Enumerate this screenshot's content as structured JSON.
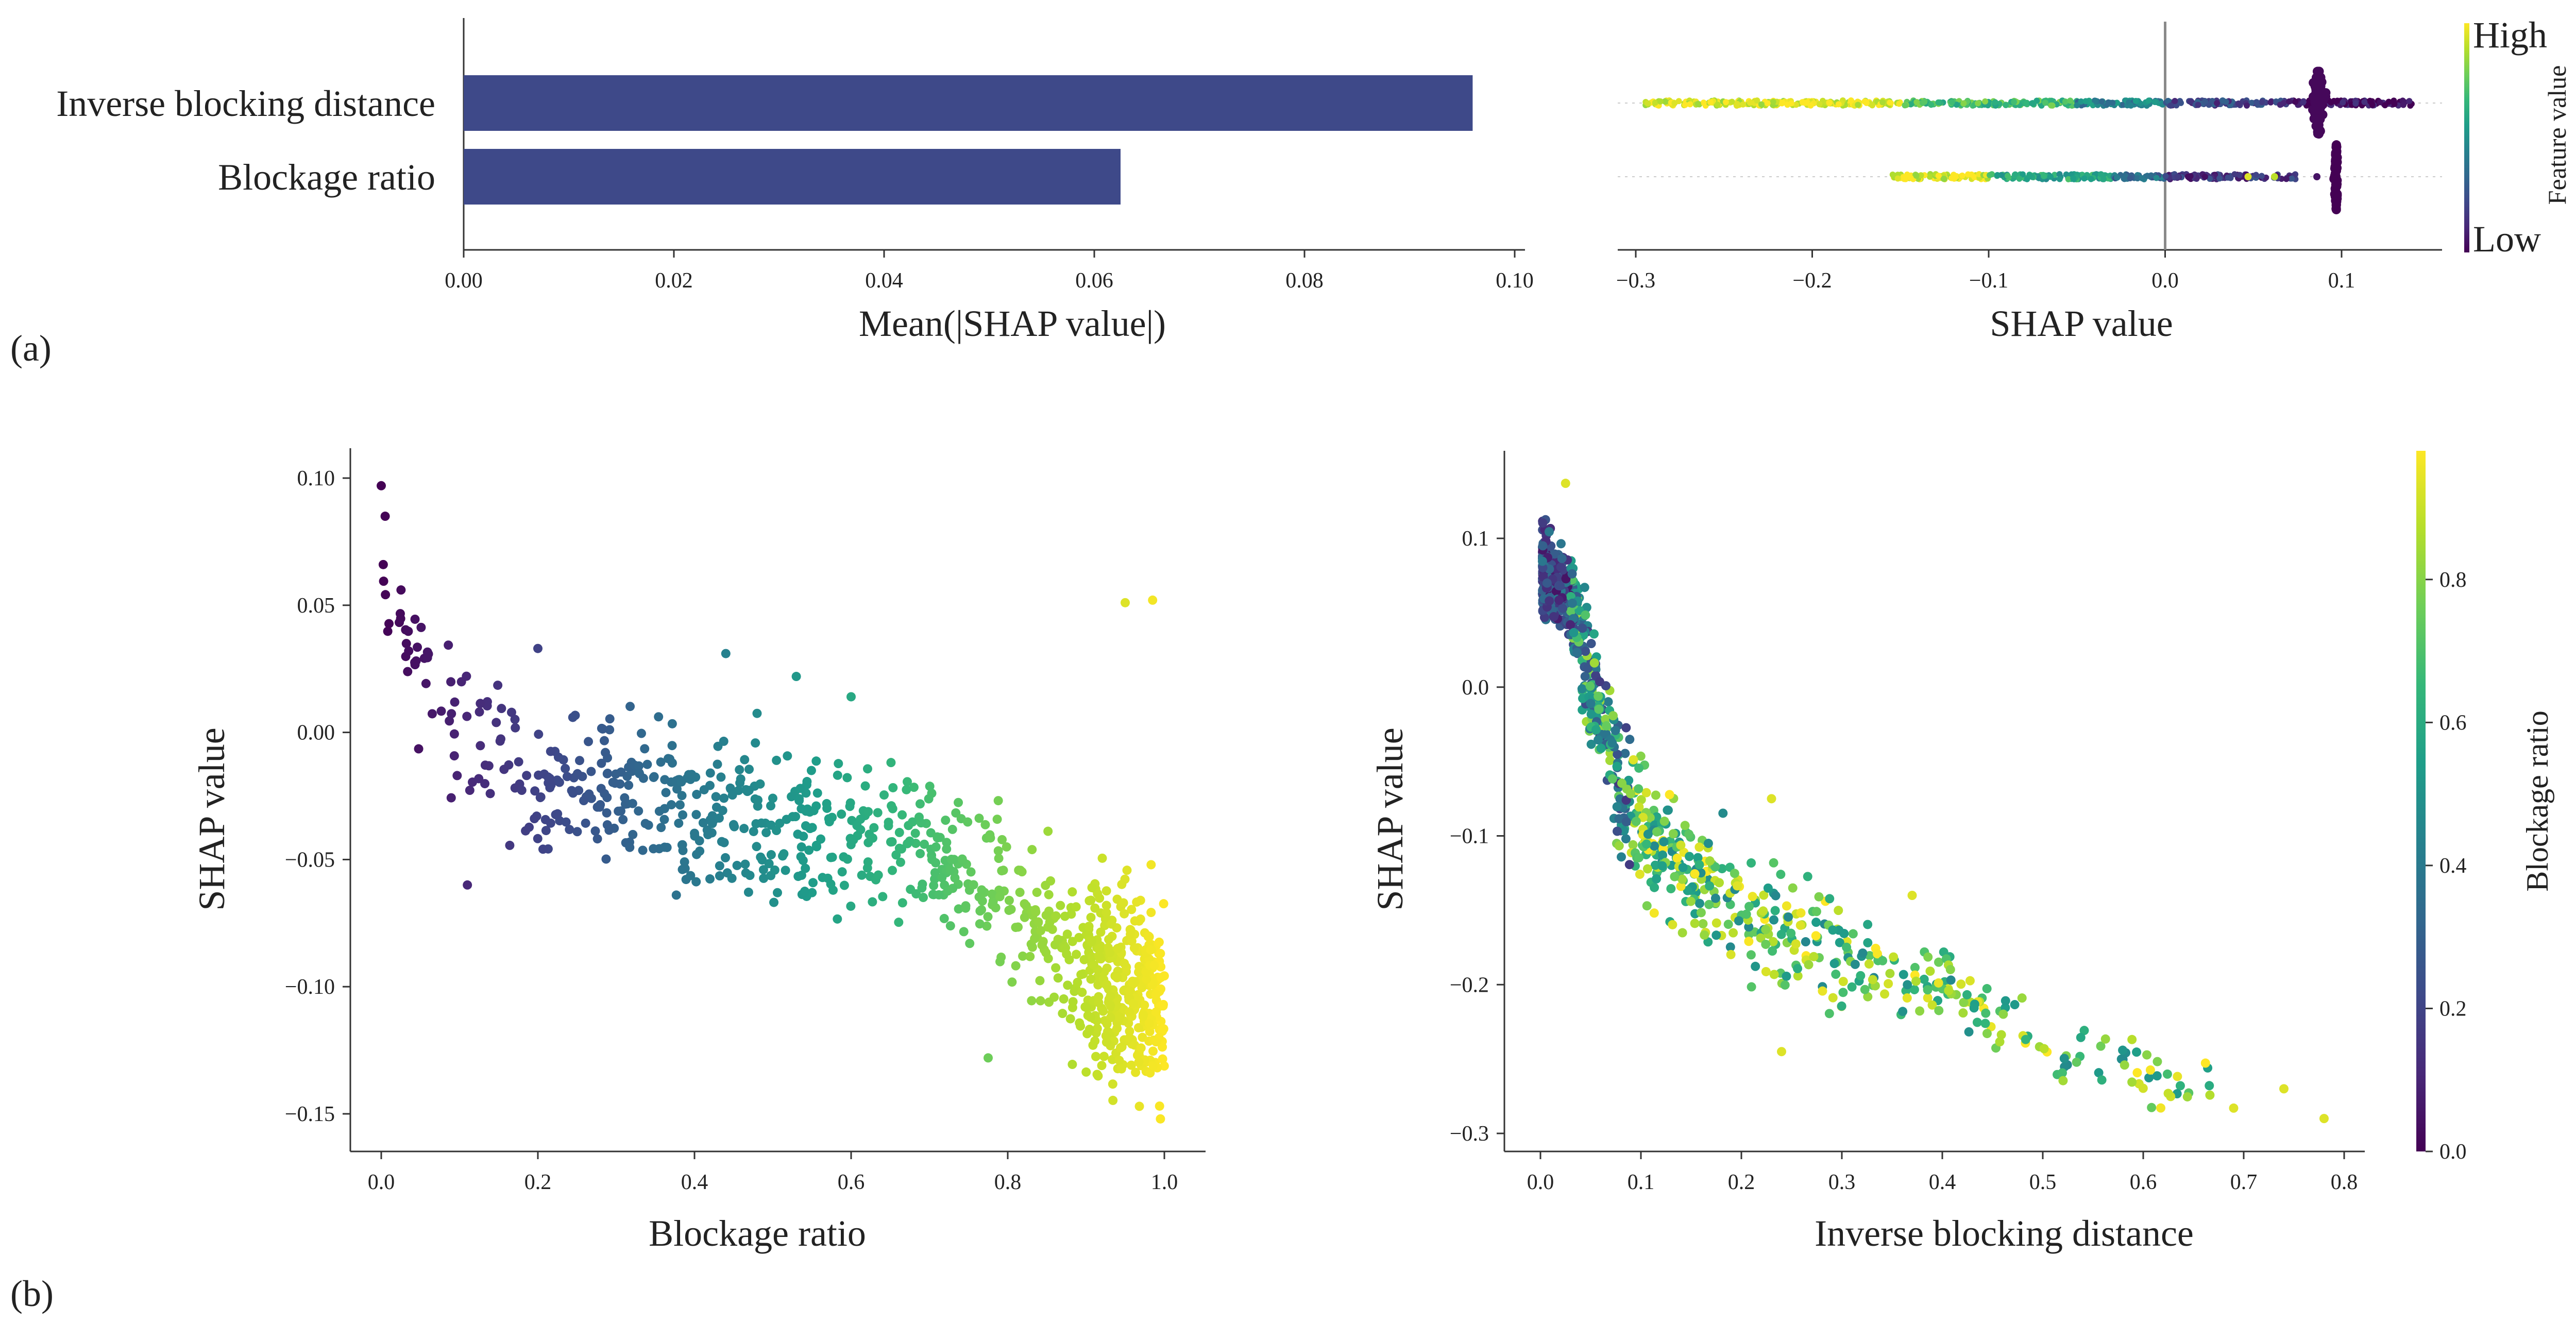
{
  "figure": {
    "panel_labels": [
      "(a)",
      "(b)"
    ]
  },
  "colors": {
    "bar": "#3e4989",
    "viridis_stops": [
      "#440154",
      "#482878",
      "#3e4989",
      "#31688e",
      "#26828e",
      "#1f9e89",
      "#35b779",
      "#6ece58",
      "#b5de2b",
      "#fde725"
    ]
  },
  "chart_data": [
    {
      "id": "importance",
      "type": "bar",
      "orientation": "horizontal",
      "categories": [
        "Inverse blocking distance",
        "Blockage ratio"
      ],
      "values": [
        0.096,
        0.0625
      ],
      "xlabel": "Mean(|SHAP value|)",
      "xlim": [
        0,
        0.1
      ],
      "xticks": [
        0.0,
        0.02,
        0.04,
        0.06,
        0.08,
        0.1
      ],
      "xtick_labels": [
        "0.00",
        "0.02",
        "0.04",
        "0.06",
        "0.08",
        "0.10"
      ]
    },
    {
      "id": "beeswarm",
      "type": "scatter",
      "subtype": "beeswarm",
      "features": [
        "Inverse blocking distance",
        "Blockage ratio"
      ],
      "xlabel": "SHAP value",
      "xlim": [
        -0.31,
        0.155
      ],
      "xticks": [
        -0.3,
        -0.2,
        -0.1,
        0.0,
        0.1
      ],
      "xtick_labels": [
        "−0.3",
        "−0.2",
        "−0.1",
        "0.0",
        "0.1"
      ],
      "colorbar": {
        "label": "Feature value",
        "high": "High",
        "low": "Low"
      },
      "rows": [
        {
          "feature": "Inverse blocking distance",
          "segments": [
            {
              "from": -0.295,
              "to": -0.15,
              "feature_value": 0.95
            },
            {
              "from": -0.15,
              "to": -0.05,
              "feature_value": 0.7
            },
            {
              "from": -0.05,
              "to": 0.0,
              "feature_value": 0.45
            },
            {
              "from": 0.0,
              "to": 0.07,
              "feature_value": 0.2
            },
            {
              "from": 0.07,
              "to": 0.14,
              "feature_value": 0.03
            }
          ],
          "cluster": {
            "at": 0.087,
            "spread": 0.0045,
            "feature_value": 0.02
          }
        },
        {
          "feature": "Blockage ratio",
          "segments": [
            {
              "from": -0.155,
              "to": -0.1,
              "feature_value": 0.95
            },
            {
              "from": -0.1,
              "to": -0.03,
              "feature_value": 0.6
            },
            {
              "from": -0.03,
              "to": 0.0,
              "feature_value": 0.35
            },
            {
              "from": 0.0,
              "to": 0.075,
              "feature_value": 0.15
            }
          ],
          "extra_points": [
            {
              "x": 0.047,
              "feature_value": 0.95
            },
            {
              "x": 0.062,
              "feature_value": 0.9
            },
            {
              "x": 0.086,
              "feature_value": 0.05
            }
          ],
          "cluster": {
            "at": 0.097,
            "spread": 0.001,
            "feature_value": 0.0
          }
        }
      ]
    },
    {
      "id": "dependence_blockage",
      "type": "scatter",
      "subtype": "dependence",
      "xlabel": "Blockage ratio",
      "ylabel": "SHAP value",
      "xlim": [
        -0.05,
        1.05
      ],
      "ylim": [
        -0.165,
        0.108
      ],
      "xticks": [
        0.0,
        0.2,
        0.4,
        0.6,
        0.8,
        1.0
      ],
      "xtick_labels": [
        "0.0",
        "0.2",
        "0.4",
        "0.6",
        "0.8",
        "1.0"
      ],
      "yticks": [
        0.1,
        0.05,
        0.0,
        -0.05,
        -0.1,
        -0.15
      ],
      "ytick_labels": [
        "0.10",
        "0.05",
        "0.00",
        "−0.05",
        "−0.10",
        "−0.15"
      ],
      "trend": [
        {
          "x": 0.0,
          "y": 0.055
        },
        {
          "x": 0.05,
          "y": 0.022
        },
        {
          "x": 0.1,
          "y": 0.0
        },
        {
          "x": 0.2,
          "y": -0.02
        },
        {
          "x": 0.4,
          "y": -0.03
        },
        {
          "x": 0.6,
          "y": -0.04
        },
        {
          "x": 0.7,
          "y": -0.045
        },
        {
          "x": 0.8,
          "y": -0.065
        },
        {
          "x": 0.9,
          "y": -0.095
        },
        {
          "x": 1.0,
          "y": -0.105
        }
      ],
      "spread": 0.02,
      "n_points": 950,
      "highlight_points": [
        {
          "x": 0.0,
          "y": 0.097
        },
        {
          "x": 0.005,
          "y": 0.085
        },
        {
          "x": 0.95,
          "y": 0.051
        },
        {
          "x": 0.985,
          "y": 0.052
        },
        {
          "x": 0.995,
          "y": -0.152
        },
        {
          "x": 0.775,
          "y": -0.128
        },
        {
          "x": 0.11,
          "y": -0.06
        },
        {
          "x": 0.2,
          "y": 0.033
        },
        {
          "x": 0.44,
          "y": 0.031
        },
        {
          "x": 0.53,
          "y": 0.022
        },
        {
          "x": 0.6,
          "y": 0.014
        }
      ]
    },
    {
      "id": "dependence_inverse",
      "type": "scatter",
      "subtype": "dependence",
      "xlabel": "Inverse blocking distance",
      "ylabel": "SHAP value",
      "xlim": [
        -0.035,
        0.83
      ],
      "ylim": [
        -0.31,
        0.143
      ],
      "xticks": [
        0.0,
        0.1,
        0.2,
        0.3,
        0.4,
        0.5,
        0.6,
        0.7,
        0.8
      ],
      "xtick_labels": [
        "0.0",
        "0.1",
        "0.2",
        "0.3",
        "0.4",
        "0.5",
        "0.6",
        "0.7",
        "0.8"
      ],
      "yticks": [
        0.1,
        0.0,
        -0.1,
        -0.2,
        -0.3
      ],
      "ytick_labels": [
        "0.1",
        "0.0",
        "−0.1",
        "−0.2",
        "−0.3"
      ],
      "colorbar": {
        "label": "Blockage ratio",
        "range": [
          0.0,
          0.98
        ],
        "ticks": [
          0.0,
          0.2,
          0.4,
          0.6,
          0.8
        ],
        "tick_labels": [
          "0.0",
          "0.2",
          "0.4",
          "0.6",
          "0.8"
        ]
      },
      "trend": [
        {
          "x": 0.0,
          "y": 0.08
        },
        {
          "x": 0.03,
          "y": 0.06
        },
        {
          "x": 0.05,
          "y": 0.01
        },
        {
          "x": 0.08,
          "y": -0.07
        },
        {
          "x": 0.12,
          "y": -0.11
        },
        {
          "x": 0.2,
          "y": -0.15
        },
        {
          "x": 0.3,
          "y": -0.18
        },
        {
          "x": 0.4,
          "y": -0.2
        },
        {
          "x": 0.5,
          "y": -0.24
        },
        {
          "x": 0.6,
          "y": -0.26
        },
        {
          "x": 0.7,
          "y": -0.275
        },
        {
          "x": 0.78,
          "y": -0.29
        }
      ],
      "n_points": 1000,
      "highlight_points": [
        {
          "x": 0.025,
          "y": 0.137
        },
        {
          "x": 0.78,
          "y": -0.29
        },
        {
          "x": 0.74,
          "y": -0.27
        },
        {
          "x": 0.69,
          "y": -0.283
        },
        {
          "x": 0.37,
          "y": -0.14
        },
        {
          "x": 0.24,
          "y": -0.245
        },
        {
          "x": 0.23,
          "y": -0.075
        }
      ]
    }
  ]
}
